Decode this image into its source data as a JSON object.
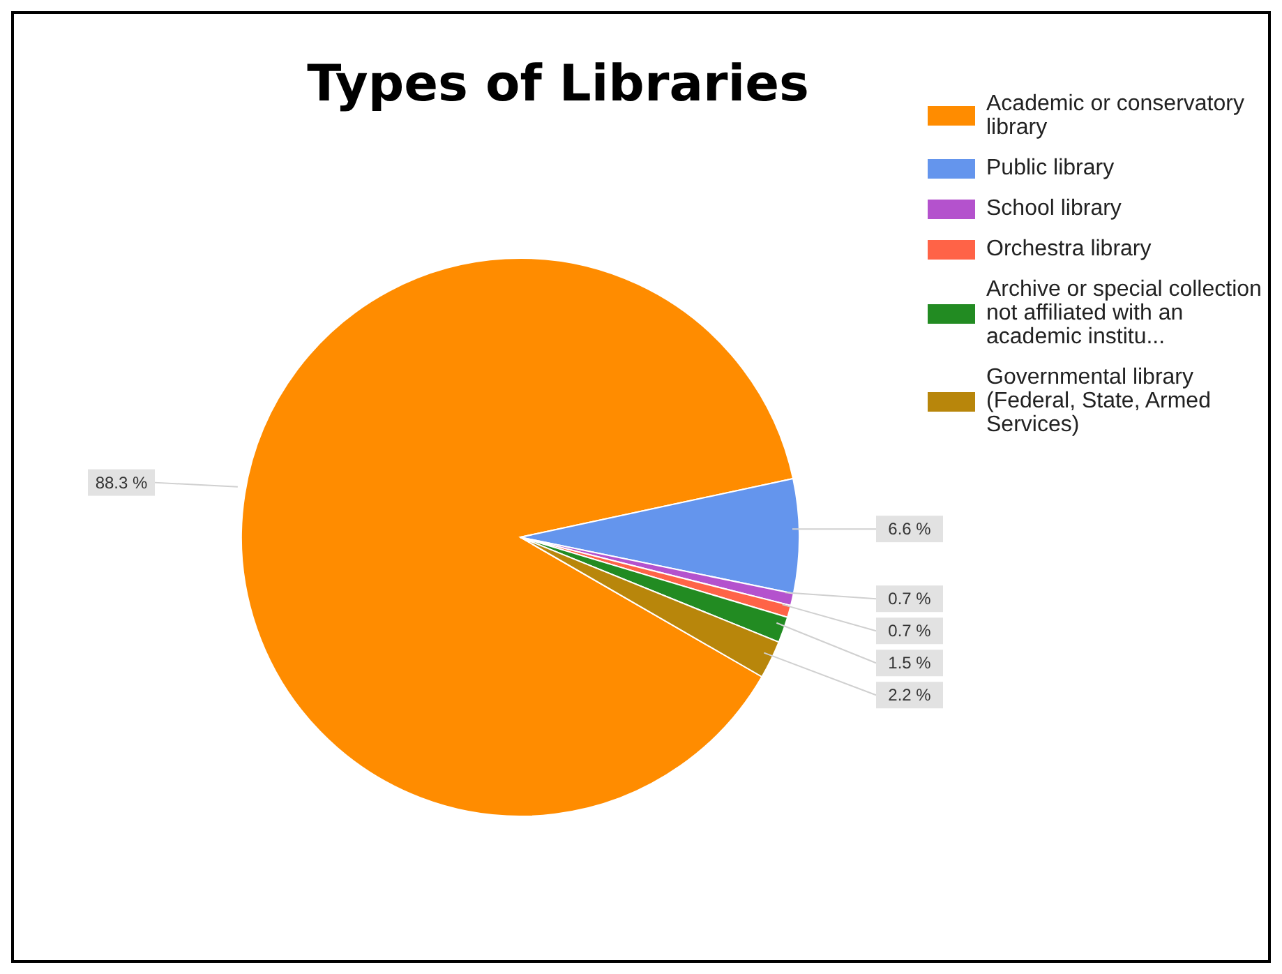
{
  "chart_data": {
    "type": "pie",
    "title": "Types of Libraries",
    "categories": [
      "Academic or conservatory library",
      "Public library",
      "School library",
      "Orchestra library",
      "Archive or special collection not affiliated with an academic institu...",
      "Governmental library (Federal, State, Armed Services)"
    ],
    "values": [
      88.3,
      6.6,
      0.7,
      0.7,
      1.5,
      2.2
    ],
    "colors": [
      "#ff8c00",
      "#6495ed",
      "#b452cd",
      "#ff6347",
      "#228b22",
      "#b8860b"
    ],
    "value_labels": [
      "88.3 %",
      "6.6 %",
      "0.7 %",
      "0.7 %",
      "1.5 %",
      "2.2 %"
    ],
    "legend": "top right"
  }
}
